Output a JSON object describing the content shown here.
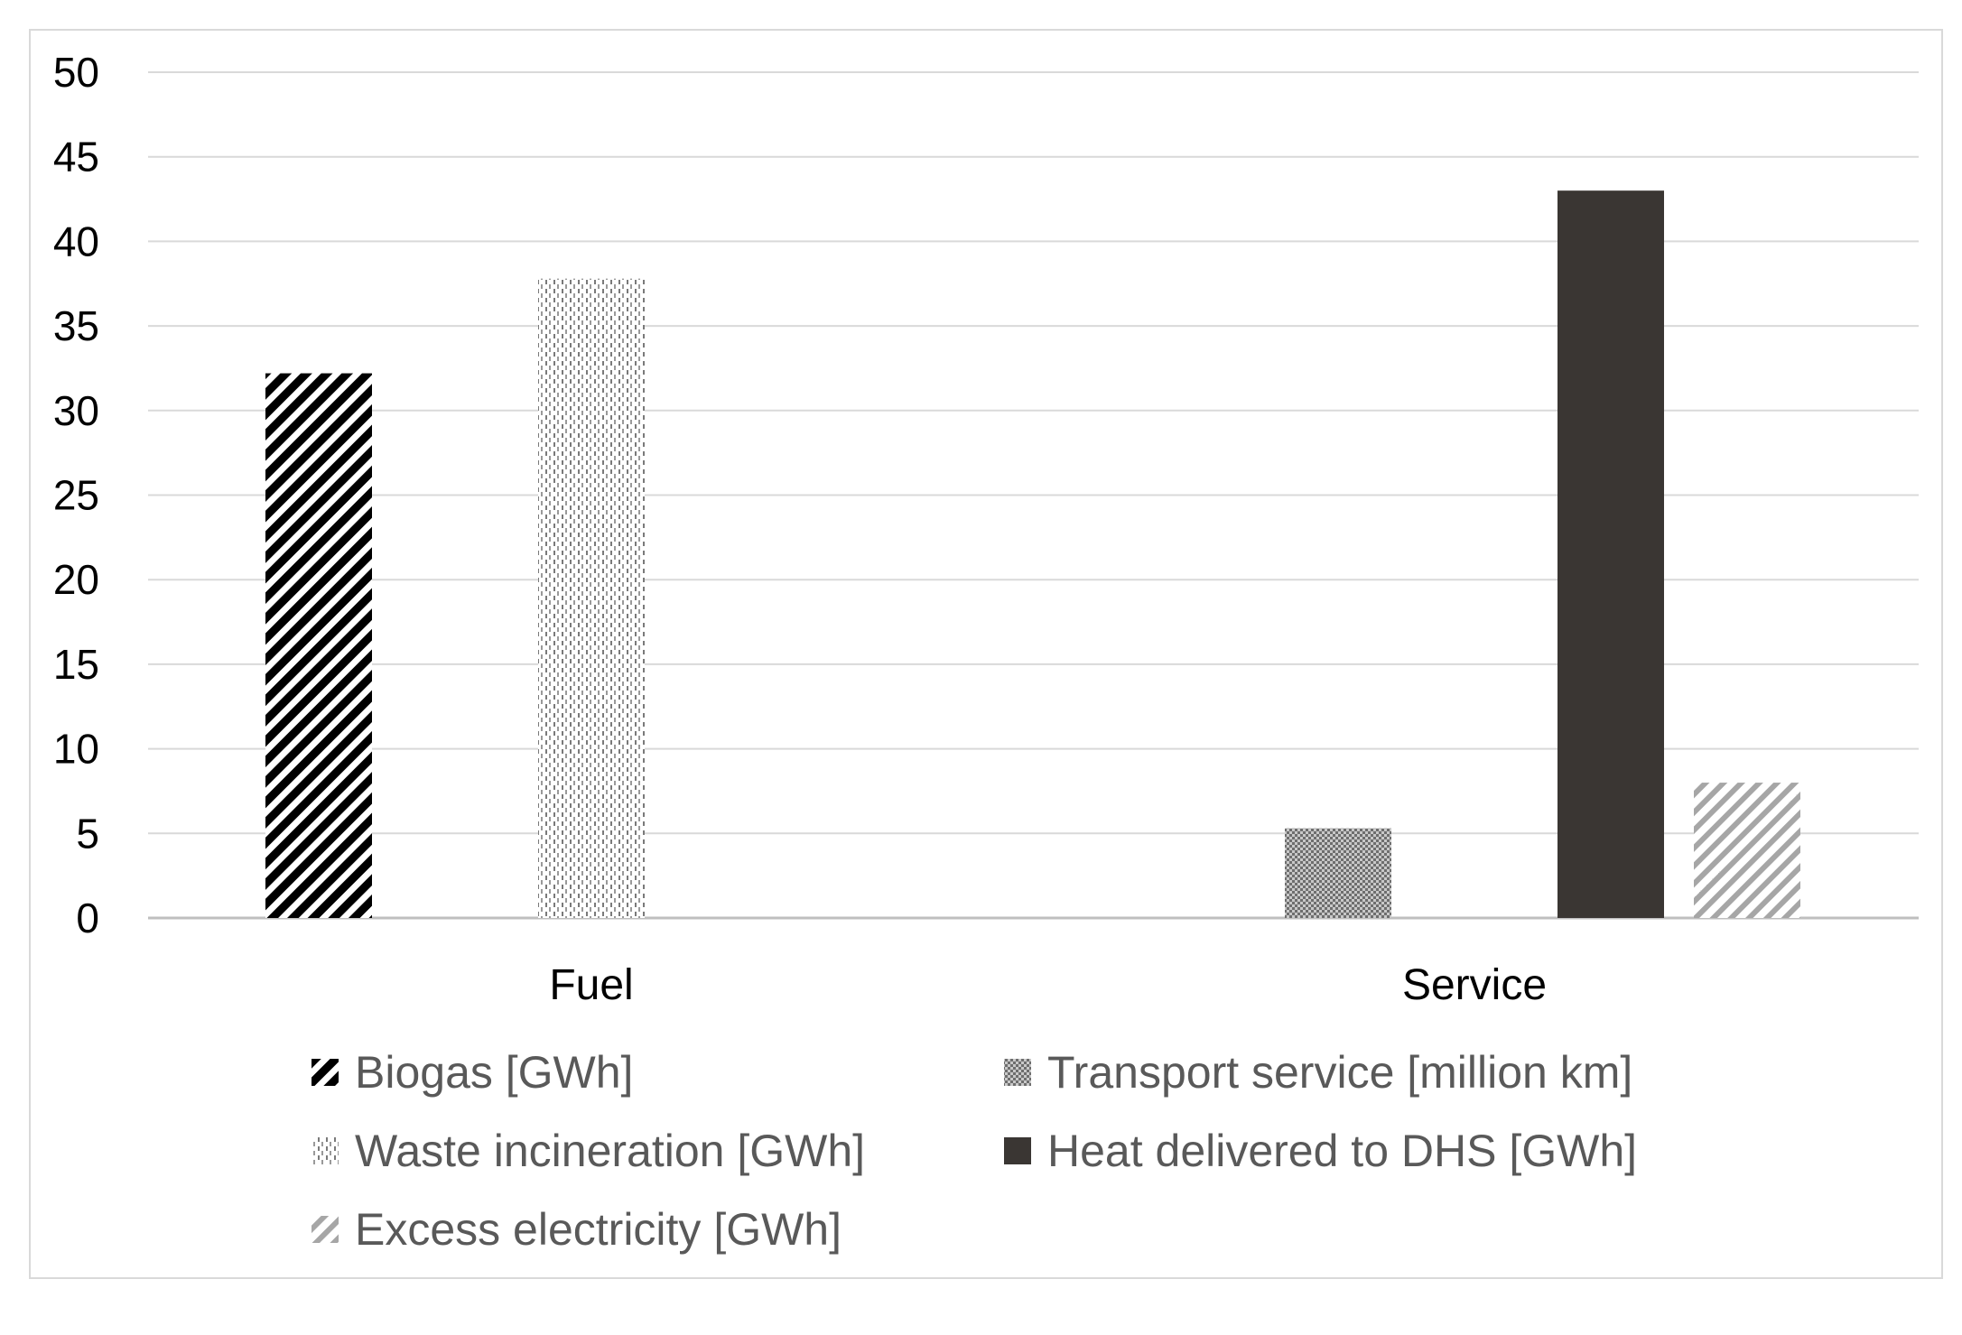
{
  "chart_data": {
    "type": "bar",
    "title": "",
    "xlabel": "",
    "ylabel": "",
    "categories": [
      "Fuel",
      "Service"
    ],
    "ylim": [
      0,
      50
    ],
    "yticks": [
      0,
      5,
      10,
      15,
      20,
      25,
      30,
      35,
      40,
      45,
      50
    ],
    "grid": true,
    "legend_position": "bottom",
    "series": [
      {
        "name": "Biogas [GWh]",
        "values": [
          32.2,
          null
        ],
        "pattern": "dense-diagonal",
        "color": "#000000"
      },
      {
        "name": "Transport service [million km]",
        "values": [
          null,
          5.3
        ],
        "pattern": "checker",
        "color": "#8c8c8c"
      },
      {
        "name": "Waste incineration [GWh]",
        "values": [
          37.8,
          null
        ],
        "pattern": "dotted-vertical",
        "color": "#7f7f7f"
      },
      {
        "name": "Heat delivered to DHS [GWh]",
        "values": [
          null,
          43
        ],
        "pattern": "solid",
        "color": "#3a3633"
      },
      {
        "name": "Excess electricity [GWh]",
        "values": [
          null,
          8
        ],
        "pattern": "light-diagonal",
        "color": "#a6a6a6"
      }
    ]
  }
}
